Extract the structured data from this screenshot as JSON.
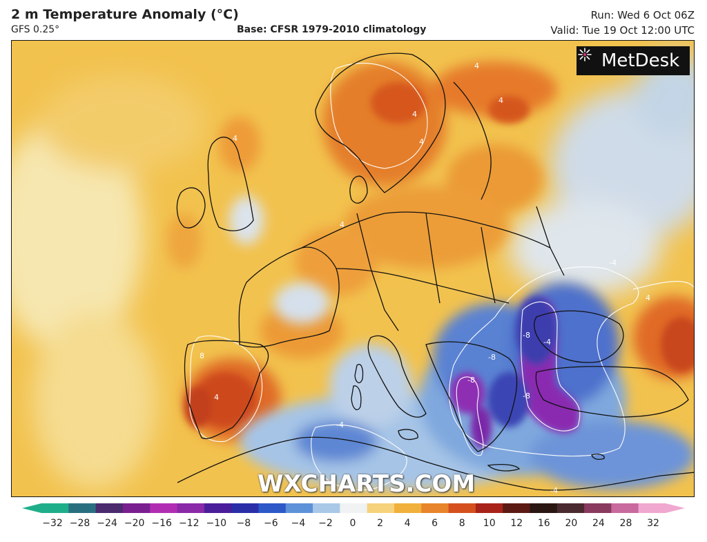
{
  "header": {
    "title": "2 m Temperature Anomaly (°C)",
    "model": "GFS 0.25°",
    "base": "Base: CFSR 1979-2010 climatology",
    "run": "Run: Wed 6 Oct 06Z",
    "valid": "Valid: Tue 19 Oct 12:00 UTC"
  },
  "logo": {
    "text": "MetDesk",
    "icon": "metdesk-star-icon"
  },
  "watermark": "WXCHARTS.COM",
  "contour_labels": [
    "4",
    "4",
    "4",
    "4",
    "8",
    "4",
    "4",
    "4",
    "-4",
    "-4",
    "-8",
    "-8",
    "-8",
    "-4",
    "-4",
    "-8",
    "4"
  ],
  "colorbar": {
    "ticks": [
      "−32",
      "−28",
      "−24",
      "−20",
      "−16",
      "−12",
      "−10",
      "−8",
      "−6",
      "−4",
      "−2",
      "0",
      "2",
      "4",
      "6",
      "8",
      "10",
      "12",
      "16",
      "20",
      "24",
      "28",
      "32"
    ],
    "colors": [
      "#1fae8a",
      "#2a6f80",
      "#4b2a6e",
      "#7a1f8f",
      "#b12eb3",
      "#8a2aa8",
      "#4a1e9a",
      "#2a2fa8",
      "#2c58c8",
      "#5e92d8",
      "#a9c8e8",
      "#f0f2f3",
      "#f6d27c",
      "#f0b13c",
      "#e8842c",
      "#d5501e",
      "#a8231a",
      "#5c1a14",
      "#2a1612",
      "#4a2a2e",
      "#8a3a5e",
      "#c86a9e",
      "#f0a8d0"
    ]
  }
}
